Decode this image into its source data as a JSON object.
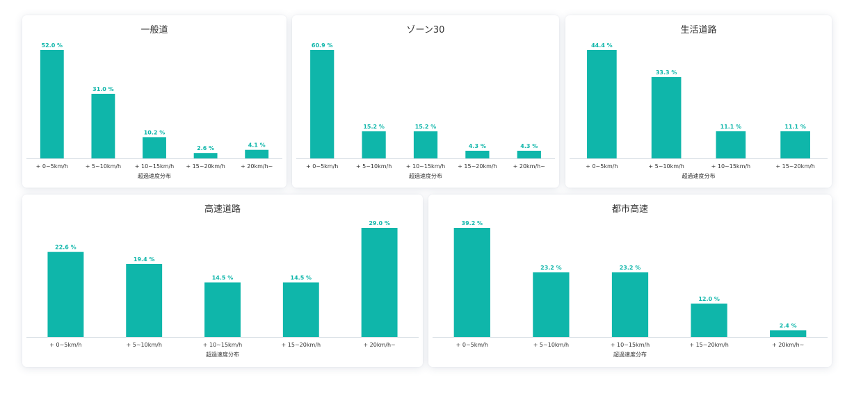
{
  "accent_color": "#0fb6aa",
  "chart_data": [
    {
      "type": "bar",
      "title": "一般道",
      "xlabel": "超過速度分布",
      "categories": [
        "+ 0~5km/h",
        "+ 5~10km/h",
        "+ 10~15km/h",
        "+ 15~20km/h",
        "+ 20km/h~"
      ],
      "values": [
        52.0,
        31.0,
        10.2,
        2.6,
        4.1
      ],
      "value_labels": [
        "52.0 %",
        "31.0 %",
        "10.2 %",
        "2.6 %",
        "4.1 %"
      ],
      "ylim": [
        0,
        52.0
      ]
    },
    {
      "type": "bar",
      "title": "ゾーン30",
      "xlabel": "超過速度分布",
      "categories": [
        "+ 0~5km/h",
        "+ 5~10km/h",
        "+ 10~15km/h",
        "+ 15~20km/h",
        "+ 20km/h~"
      ],
      "values": [
        60.9,
        15.2,
        15.2,
        4.3,
        4.3
      ],
      "value_labels": [
        "60.9 %",
        "15.2 %",
        "15.2 %",
        "4.3 %",
        "4.3 %"
      ],
      "ylim": [
        0,
        60.9
      ]
    },
    {
      "type": "bar",
      "title": "生活道路",
      "xlabel": "超過速度分布",
      "categories": [
        "+ 0~5km/h",
        "+ 5~10km/h",
        "+ 10~15km/h",
        "+ 15~20km/h"
      ],
      "values": [
        44.4,
        33.3,
        11.1,
        11.1
      ],
      "value_labels": [
        "44.4 %",
        "33.3 %",
        "11.1 %",
        "11.1 %"
      ],
      "ylim": [
        0,
        44.4
      ]
    },
    {
      "type": "bar",
      "title": "高速道路",
      "xlabel": "超過速度分布",
      "categories": [
        "+ 0~5km/h",
        "+ 5~10km/h",
        "+ 10~15km/h",
        "+ 15~20km/h",
        "+ 20km/h~"
      ],
      "values": [
        22.6,
        19.4,
        14.5,
        14.5,
        29.0
      ],
      "value_labels": [
        "22.6 %",
        "19.4 %",
        "14.5 %",
        "14.5 %",
        "29.0 %"
      ],
      "ylim": [
        0,
        29.0
      ]
    },
    {
      "type": "bar",
      "title": "都市高速",
      "xlabel": "超過速度分布",
      "categories": [
        "+ 0~5km/h",
        "+ 5~10km/h",
        "+ 10~15km/h",
        "+ 15~20km/h",
        "+ 20km/h~"
      ],
      "values": [
        39.2,
        23.2,
        23.2,
        12.0,
        2.4
      ],
      "value_labels": [
        "39.2 %",
        "23.2 %",
        "23.2 %",
        "12.0 %",
        "2.4 %"
      ],
      "ylim": [
        0,
        39.2
      ]
    }
  ]
}
